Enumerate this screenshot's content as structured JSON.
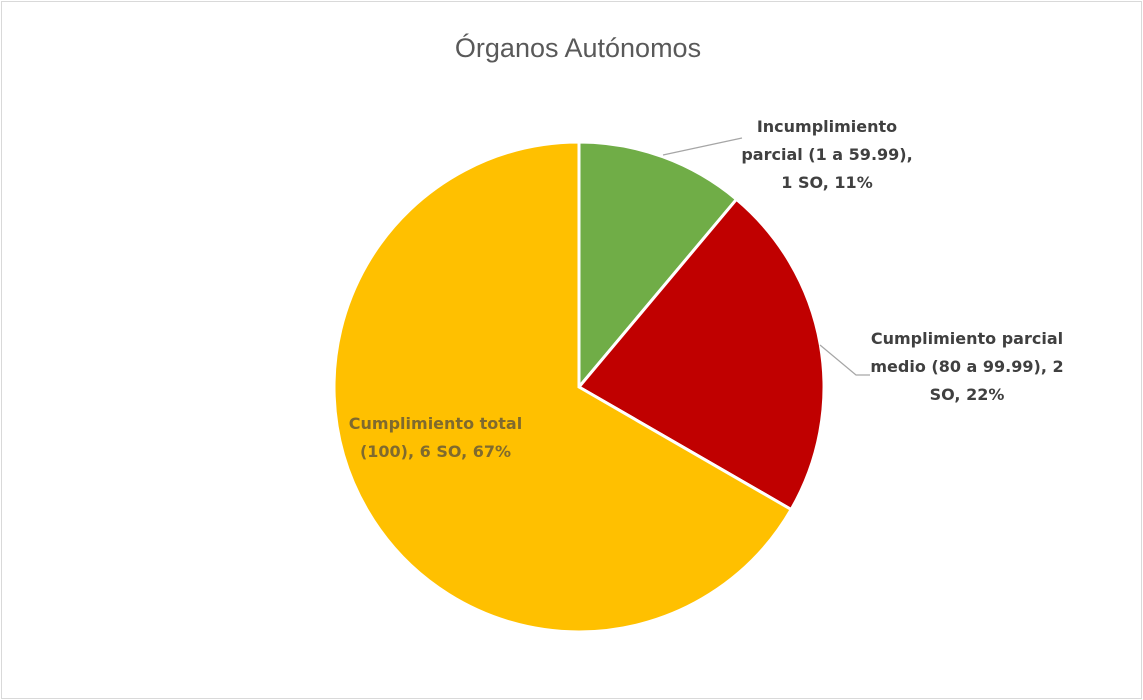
{
  "chart_data": {
    "type": "pie",
    "title": "Órganos Autónomos",
    "categories": [
      "Incumplimiento parcial (1 a 59.99)",
      "Cumplimiento parcial medio (80 a 99.99)",
      "Cumplimiento total (100)"
    ],
    "values": [
      1,
      2,
      6
    ],
    "value_labels": [
      "1 SO",
      "2 SO",
      "6 SO"
    ],
    "percentages": [
      11,
      22,
      67
    ],
    "percentage_labels": [
      "11%",
      "22%",
      "67%"
    ],
    "colors": [
      "#70ad47",
      "#c00000",
      "#ffc000"
    ]
  }
}
